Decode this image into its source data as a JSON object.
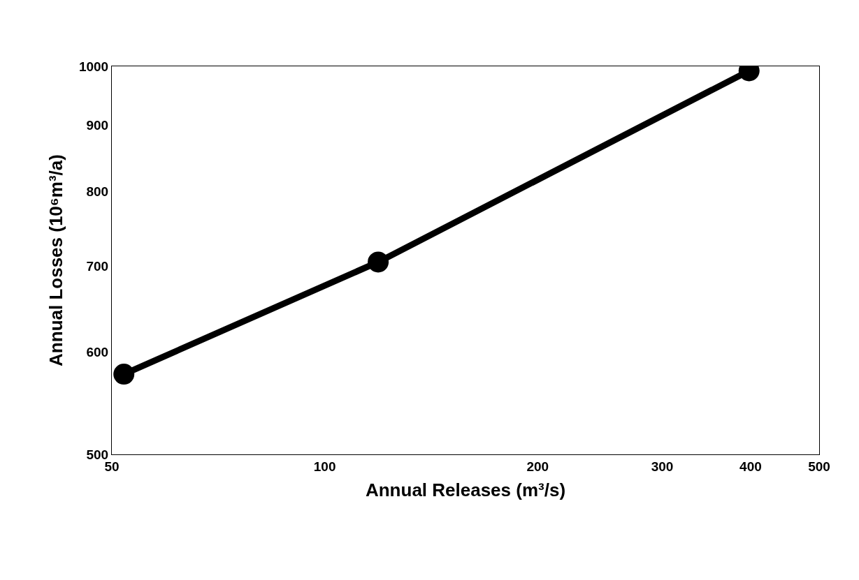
{
  "chart_data": {
    "type": "line",
    "xlabel": "Annual Releases (m³/s)",
    "ylabel": "Annual Losses (10⁶m³/a)",
    "x": [
      52,
      119,
      398
    ],
    "series": [
      {
        "color": "#000000",
        "values": [
          577,
          705,
          992
        ]
      }
    ],
    "log": "xy",
    "xlim": [
      50,
      500
    ],
    "ylim": [
      500,
      1000
    ],
    "xticks": [
      50,
      100,
      200,
      300,
      400,
      500
    ],
    "yticks": [
      500,
      600,
      700,
      800,
      900,
      1000
    ],
    "marker": "circle",
    "line_style": "solid",
    "legend": false
  }
}
